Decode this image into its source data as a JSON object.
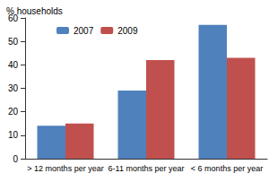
{
  "chart_data": {
    "type": "bar",
    "y_label": "% households",
    "categories": [
      "> 12 months per year",
      "6-11 months per year",
      "< 6 months per year"
    ],
    "series": [
      {
        "name": "2007",
        "color": "#4f81bd",
        "values": [
          14,
          29,
          57
        ]
      },
      {
        "name": "2009",
        "color": "#c0504d",
        "values": [
          15,
          42,
          43
        ]
      }
    ],
    "ylim": [
      0,
      60
    ],
    "yticks": [
      0,
      10,
      20,
      30,
      40,
      50,
      60
    ],
    "grid": false,
    "legend": "top-left"
  }
}
